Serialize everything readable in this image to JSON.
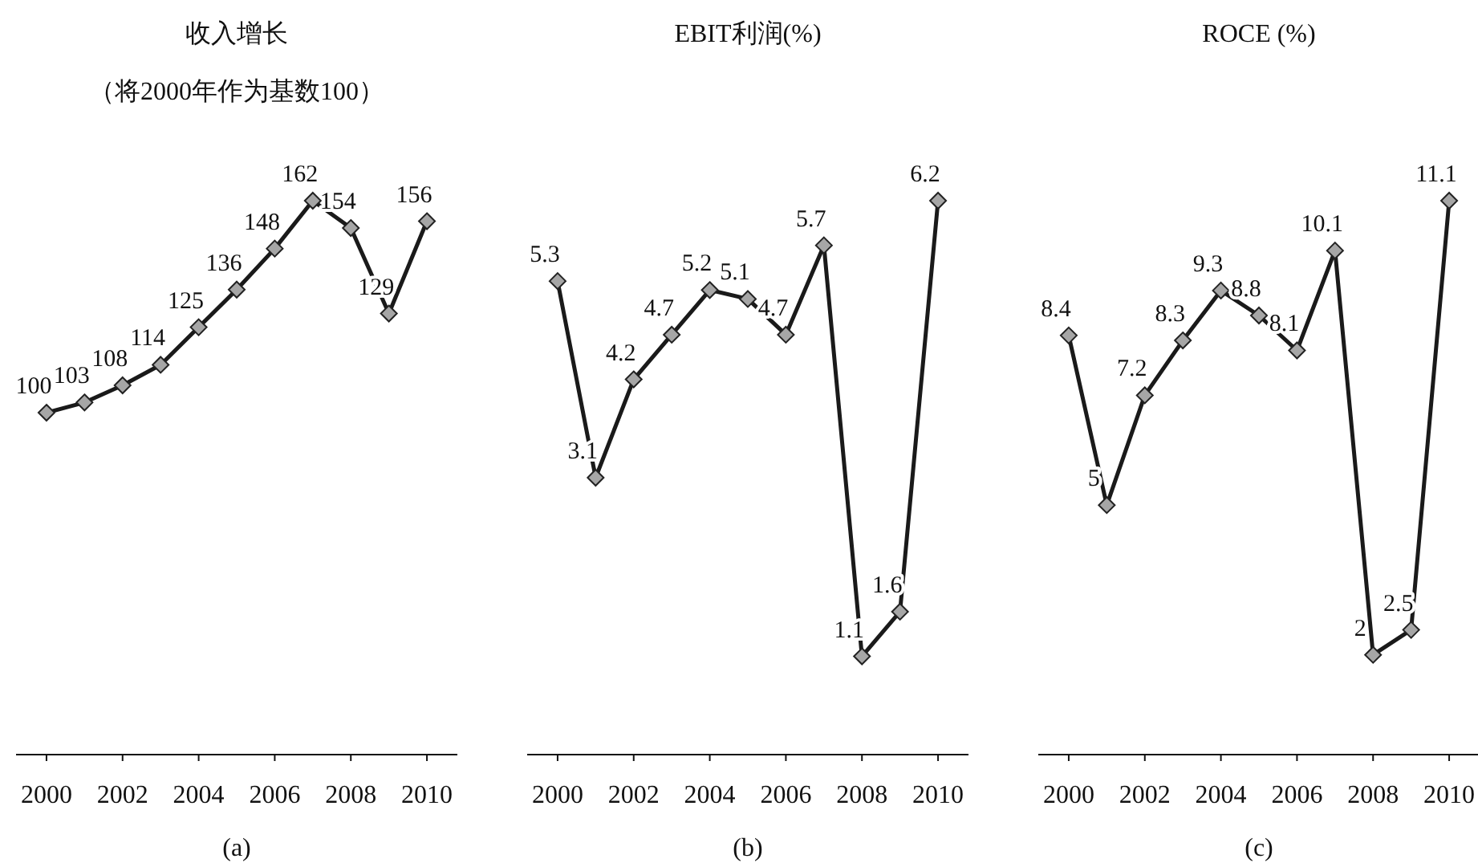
{
  "chart_data": [
    {
      "type": "line",
      "title": "收入增长",
      "subtitle": "（将2000年作为基数100）",
      "xlabel": "(a)",
      "x": [
        2000,
        2001,
        2002,
        2003,
        2004,
        2005,
        2006,
        2007,
        2008,
        2009,
        2010
      ],
      "xlim": [
        1999.2,
        2010.8
      ],
      "xticks": [
        2000,
        2002,
        2004,
        2006,
        2008,
        2010
      ],
      "tick_labels": "x",
      "data_labels": true,
      "marker": "diamond",
      "line_style": "solid",
      "series": [
        {
          "color": "#1a1a1a",
          "values": [
            100,
            103,
            108,
            114,
            125,
            136,
            148,
            162,
            154,
            129,
            156
          ]
        }
      ]
    },
    {
      "type": "line",
      "title": "EBIT利润(%)",
      "xlabel": "(b)",
      "x": [
        2000,
        2001,
        2002,
        2003,
        2004,
        2005,
        2006,
        2007,
        2008,
        2009,
        2010
      ],
      "xlim": [
        1999.2,
        2010.8
      ],
      "xticks": [
        2000,
        2002,
        2004,
        2006,
        2008,
        2010
      ],
      "tick_labels": "x",
      "data_labels": true,
      "marker": "diamond",
      "line_style": "solid",
      "series": [
        {
          "color": "#1a1a1a",
          "values": [
            5.3,
            3.1,
            4.2,
            4.7,
            5.2,
            5.1,
            4.7,
            5.7,
            1.1,
            1.6,
            6.2
          ]
        }
      ]
    },
    {
      "type": "line",
      "title": "ROCE (%)",
      "xlabel": "(c)",
      "x": [
        2000,
        2001,
        2002,
        2003,
        2004,
        2005,
        2006,
        2007,
        2008,
        2009,
        2010
      ],
      "xlim": [
        1999.2,
        2010.8
      ],
      "xticks": [
        2000,
        2002,
        2004,
        2006,
        2008,
        2010
      ],
      "tick_labels": "x",
      "data_labels": true,
      "marker": "diamond",
      "line_style": "solid",
      "series": [
        {
          "color": "#1a1a1a",
          "values": [
            8.4,
            5,
            7.2,
            8.3,
            9.3,
            8.8,
            8.1,
            10.1,
            2,
            2.5,
            11.1
          ]
        }
      ]
    }
  ]
}
